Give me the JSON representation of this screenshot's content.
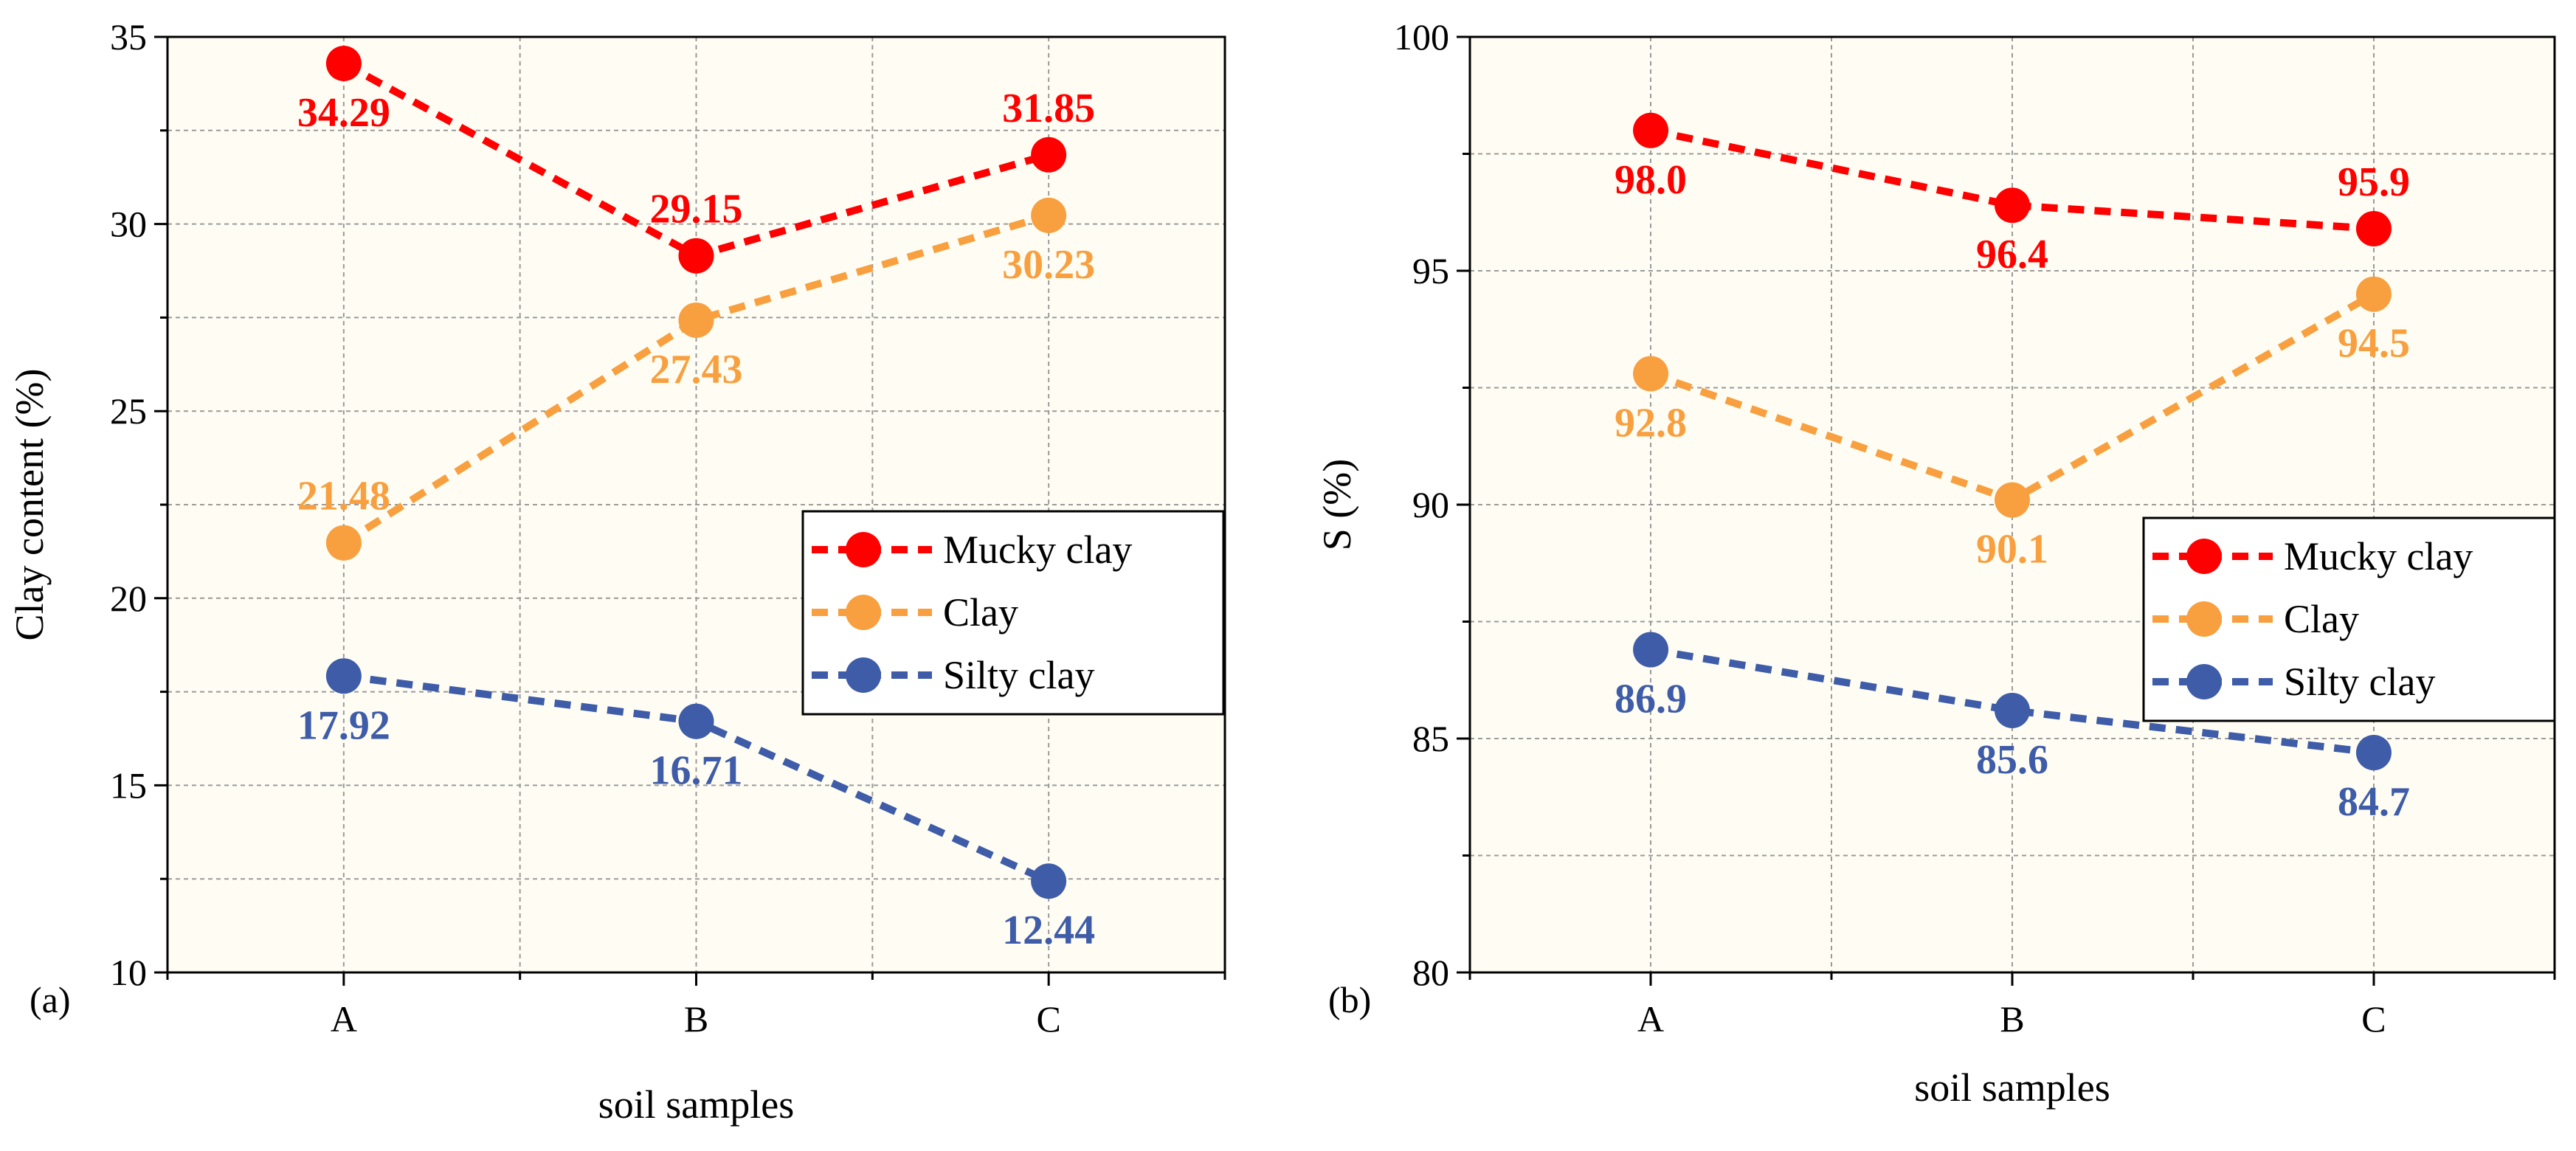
{
  "colors": {
    "mucky": "#ff0000",
    "clay": "#f8a040",
    "silty": "#3e5ca8",
    "plot_bg": "#fffdf3",
    "grid": "#9a9a9a",
    "axis": "#000000"
  },
  "chart_data": [
    {
      "type": "line",
      "panel_label": "(a)",
      "xlabel": "soil samples",
      "ylabel": "Clay content (%)",
      "categories": [
        "A",
        "B",
        "C"
      ],
      "ylim": [
        10,
        35
      ],
      "yticks": [
        "10",
        "15",
        "20",
        "25",
        "30",
        "35"
      ],
      "legend_position": "right-middle",
      "series": [
        {
          "name": "Mucky clay",
          "color_key": "mucky",
          "values": [
            34.29,
            29.15,
            31.85
          ],
          "labels": [
            "34.29",
            "29.15",
            "31.85"
          ],
          "label_placement": [
            "below",
            "above",
            "above"
          ]
        },
        {
          "name": "Clay",
          "color_key": "clay",
          "values": [
            21.48,
            27.43,
            30.23
          ],
          "labels": [
            "21.48",
            "27.43",
            "30.23"
          ],
          "label_placement": [
            "above",
            "below",
            "below"
          ]
        },
        {
          "name": "Silty clay",
          "color_key": "silty",
          "values": [
            17.92,
            16.71,
            12.44
          ],
          "labels": [
            "17.92",
            "16.71",
            "12.44"
          ],
          "label_placement": [
            "below",
            "below",
            "below"
          ]
        }
      ]
    },
    {
      "type": "line",
      "panel_label": "(b)",
      "xlabel": "soil samples",
      "ylabel": "S (%)",
      "categories": [
        "A",
        "B",
        "C"
      ],
      "ylim": [
        80,
        100
      ],
      "yticks": [
        "80",
        "85",
        "90",
        "95",
        "100"
      ],
      "legend_position": "right-middle",
      "series": [
        {
          "name": "Mucky clay",
          "color_key": "mucky",
          "values": [
            98.0,
            96.4,
            95.9
          ],
          "labels": [
            "98.0",
            "96.4",
            "95.9"
          ],
          "label_placement": [
            "below",
            "below",
            "above"
          ]
        },
        {
          "name": "Clay",
          "color_key": "clay",
          "values": [
            92.8,
            90.1,
            94.5
          ],
          "labels": [
            "92.8",
            "90.1",
            "94.5"
          ],
          "label_placement": [
            "below",
            "below",
            "below"
          ]
        },
        {
          "name": "Silty clay",
          "color_key": "silty",
          "values": [
            86.9,
            85.6,
            84.7
          ],
          "labels": [
            "86.9",
            "85.6",
            "84.7"
          ],
          "label_placement": [
            "below",
            "below",
            "below"
          ]
        }
      ]
    }
  ]
}
